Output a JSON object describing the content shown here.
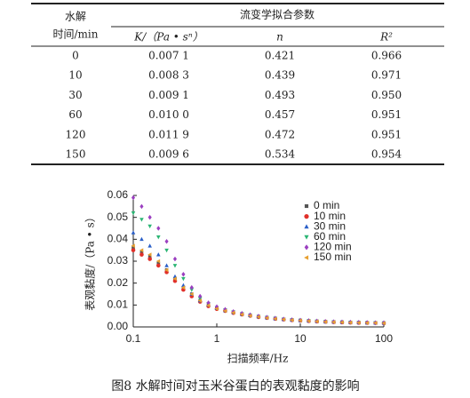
{
  "table": {
    "stub_header": [
      "水解",
      "时间/min"
    ],
    "group_header": "流变学拟合参数",
    "columns": [
      "K/（Pa • sⁿ）",
      "n",
      "R²"
    ],
    "rows": [
      [
        "0",
        "0.007 1",
        "0.421",
        "0.966"
      ],
      [
        "10",
        "0.008 3",
        "0.439",
        "0.971"
      ],
      [
        "30",
        "0.009 1",
        "0.493",
        "0.950"
      ],
      [
        "60",
        "0.010 0",
        "0.457",
        "0.951"
      ],
      [
        "120",
        "0.011 9",
        "0.472",
        "0.951"
      ],
      [
        "150",
        "0.009 6",
        "0.534",
        "0.954"
      ]
    ]
  },
  "chart_data": {
    "type": "scatter",
    "x_label": "扫描频率/Hz",
    "y_label": "表观黏度/（Pa • s）",
    "log_x": true,
    "xlim": [
      0.1,
      100
    ],
    "xticks": [
      0.1,
      1,
      10,
      100
    ],
    "ylim": [
      0,
      0.06
    ],
    "yticks": [
      {
        "value": 0,
        "label": "0.00"
      },
      0.01,
      0.02,
      0.03,
      0.04,
      0.05,
      0.06
    ],
    "x": [
      0.1,
      0.126,
      0.158,
      0.2,
      0.251,
      0.316,
      0.398,
      0.501,
      0.631,
      0.794,
      1,
      1.26,
      1.58,
      2,
      2.51,
      3.16,
      3.98,
      5.01,
      6.31,
      7.94,
      10,
      12.6,
      15.8,
      20,
      25.1,
      31.6,
      39.8,
      50.1,
      63.1,
      79.4,
      100
    ],
    "series": [
      {
        "name": "0 min",
        "color": "#555555",
        "marker": "square",
        "values": [
          0.036,
          0.034,
          0.032,
          0.029,
          0.026,
          0.022,
          0.018,
          0.015,
          0.012,
          0.01,
          0.0085,
          0.0075,
          0.0066,
          0.0058,
          0.0052,
          0.0046,
          0.0042,
          0.0038,
          0.0034,
          0.0031,
          0.0029,
          0.0027,
          0.0025,
          0.0023,
          0.0022,
          0.0021,
          0.002,
          0.0019,
          0.0018,
          0.0018,
          0.0017
        ]
      },
      {
        "name": "10 min",
        "color": "#e0302a",
        "marker": "circle",
        "values": [
          0.035,
          0.033,
          0.031,
          0.028,
          0.025,
          0.021,
          0.017,
          0.014,
          0.0115,
          0.0095,
          0.0082,
          0.0073,
          0.0064,
          0.0057,
          0.0051,
          0.0045,
          0.0041,
          0.0037,
          0.0034,
          0.0031,
          0.0029,
          0.0027,
          0.0025,
          0.0024,
          0.0022,
          0.0021,
          0.002,
          0.0019,
          0.0019,
          0.0018,
          0.0017
        ]
      },
      {
        "name": "30 min",
        "color": "#2a5fc8",
        "marker": "triangle-up",
        "values": [
          0.043,
          0.04,
          0.037,
          0.033,
          0.028,
          0.023,
          0.019,
          0.015,
          0.012,
          0.01,
          0.0085,
          0.0075,
          0.0066,
          0.0058,
          0.0052,
          0.0047,
          0.0042,
          0.0038,
          0.0035,
          0.0032,
          0.003,
          0.0028,
          0.0026,
          0.0024,
          0.0023,
          0.0022,
          0.0021,
          0.002,
          0.0019,
          0.0018,
          0.0018
        ]
      },
      {
        "name": "60 min",
        "color": "#2ab573",
        "marker": "triangle-down",
        "values": [
          0.052,
          0.049,
          0.046,
          0.041,
          0.035,
          0.028,
          0.022,
          0.017,
          0.013,
          0.0105,
          0.0088,
          0.0077,
          0.0068,
          0.006,
          0.0054,
          0.0048,
          0.0043,
          0.0039,
          0.0035,
          0.0032,
          0.003,
          0.0028,
          0.0026,
          0.0024,
          0.0023,
          0.0022,
          0.0021,
          0.002,
          0.0019,
          0.0019,
          0.0018
        ]
      },
      {
        "name": "120 min",
        "color": "#9b3fc0",
        "marker": "diamond",
        "values": [
          0.059,
          0.055,
          0.05,
          0.045,
          0.039,
          0.031,
          0.024,
          0.018,
          0.014,
          0.011,
          0.0092,
          0.008,
          0.007,
          0.0062,
          0.0055,
          0.0049,
          0.0044,
          0.004,
          0.0036,
          0.0033,
          0.0031,
          0.0029,
          0.0027,
          0.0025,
          0.0024,
          0.0023,
          0.0022,
          0.0021,
          0.002,
          0.0019,
          0.0019
        ]
      },
      {
        "name": "150 min",
        "color": "#e8a030",
        "marker": "triangle-left",
        "values": [
          0.037,
          0.035,
          0.033,
          0.03,
          0.026,
          0.022,
          0.018,
          0.015,
          0.012,
          0.0098,
          0.0083,
          0.0073,
          0.0065,
          0.0057,
          0.0051,
          0.0046,
          0.0041,
          0.0037,
          0.0034,
          0.0031,
          0.0029,
          0.0027,
          0.0025,
          0.0023,
          0.0022,
          0.0021,
          0.002,
          0.0019,
          0.0018,
          0.0018,
          0.0017
        ]
      }
    ]
  },
  "caption": "图8  水解时间对玉米谷蛋白的表观黏度的影响"
}
